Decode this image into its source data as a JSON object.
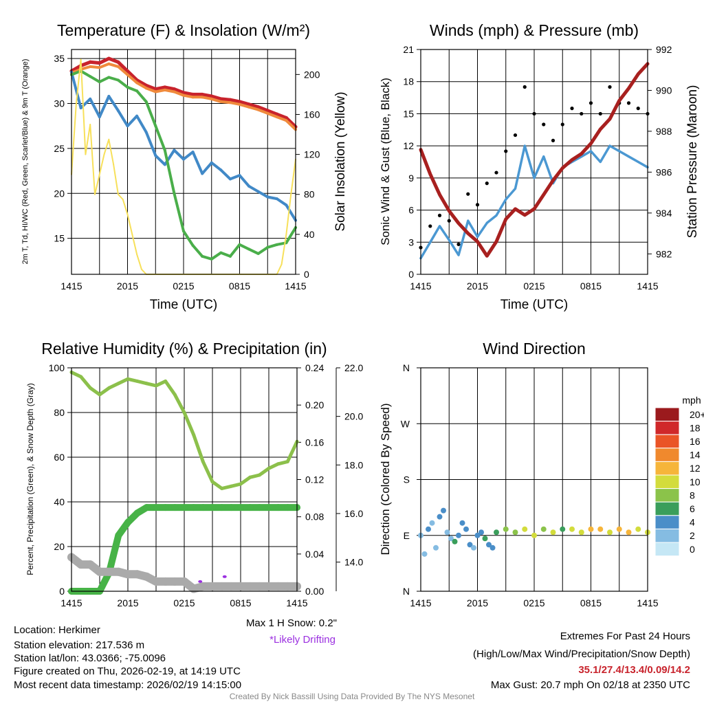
{
  "chart_data": [
    {
      "type": "line",
      "title": "Temperature (F) & Insolation (W/m²)",
      "xlabel": "Time (UTC)",
      "ylabel_left": "2m T, Td, HI/WC (Red, Green, Scarlet/Blue) & 9m T (Orange)",
      "ylabel_right": "Solar Insolation (Yellow)",
      "xticks": [
        "1415",
        "2015",
        "0215",
        "0815",
        "1415"
      ],
      "ylim": [
        11,
        36
      ],
      "yticks": [
        15,
        20,
        25,
        30,
        35
      ],
      "ylim_right": [
        0,
        225
      ],
      "yticks_right": [
        0,
        40,
        80,
        120,
        160,
        200
      ],
      "series": [
        {
          "name": "2m T (Red)",
          "color": "#c8232c",
          "x": [
            0,
            1,
            2,
            3,
            4,
            5,
            6,
            7,
            8,
            9,
            10,
            11,
            12,
            13,
            14,
            15,
            16,
            17,
            18,
            19,
            20,
            21,
            22,
            23,
            24
          ],
          "y": [
            33.6,
            34.2,
            34.6,
            34.5,
            35.0,
            34.6,
            33.6,
            32.6,
            32.0,
            31.6,
            31.8,
            31.6,
            31.2,
            31.0,
            31.0,
            30.8,
            30.5,
            30.4,
            30.2,
            29.9,
            29.6,
            29.2,
            28.8,
            28.4,
            27.4
          ]
        },
        {
          "name": "9m T (Orange)",
          "color": "#f08a3c",
          "x": [
            0,
            1,
            2,
            3,
            4,
            5,
            6,
            7,
            8,
            9,
            10,
            11,
            12,
            13,
            14,
            15,
            16,
            17,
            18,
            19,
            20,
            21,
            22,
            23,
            24
          ],
          "y": [
            33.4,
            33.8,
            34.1,
            34.0,
            34.4,
            34.1,
            33.2,
            32.3,
            31.7,
            31.3,
            31.5,
            31.3,
            30.9,
            30.7,
            30.7,
            30.5,
            30.2,
            30.1,
            29.9,
            29.6,
            29.3,
            28.9,
            28.5,
            28.1,
            27.1
          ]
        },
        {
          "name": "HI/WC (Blue)",
          "color": "#4189c7",
          "x": [
            0,
            1,
            2,
            3,
            4,
            5,
            6,
            7,
            8,
            9,
            10,
            11,
            12,
            13,
            14,
            15,
            16,
            17,
            18,
            19,
            20,
            21,
            22,
            23,
            24
          ],
          "y": [
            33.5,
            29.5,
            30.5,
            28.5,
            30.8,
            29.2,
            27.5,
            28.6,
            26.8,
            24.2,
            23.2,
            24.8,
            23.8,
            24.6,
            22.2,
            23.4,
            22.6,
            21.6,
            22.0,
            20.8,
            20.2,
            19.6,
            19.4,
            18.7,
            17.0
          ]
        },
        {
          "name": "Td (Green)",
          "color": "#4aae4a",
          "x": [
            0,
            1,
            2,
            3,
            4,
            5,
            6,
            7,
            8,
            9,
            10,
            11,
            12,
            13,
            14,
            15,
            16,
            17,
            18,
            19,
            20,
            21,
            22,
            23,
            24
          ],
          "y": [
            33.2,
            33.6,
            33.0,
            32.4,
            32.9,
            32.6,
            31.8,
            31.4,
            30.2,
            27.5,
            24.8,
            20.0,
            15.8,
            14.2,
            13.0,
            12.7,
            13.4,
            13.0,
            14.3,
            13.8,
            13.3,
            14.0,
            14.3,
            14.5,
            16.2
          ]
        },
        {
          "name": "Solar Insolation (Yellow)",
          "color": "#f7e05a",
          "axis": "right",
          "x": [
            0,
            0.5,
            1,
            1.5,
            2,
            2.5,
            3,
            3.5,
            4,
            4.5,
            5,
            5.5,
            6,
            6.5,
            7,
            7.5,
            8,
            9,
            12,
            20,
            21,
            22,
            22.5,
            23,
            23.5,
            24
          ],
          "y": [
            100,
            170,
            215,
            120,
            150,
            80,
            100,
            120,
            135,
            110,
            80,
            75,
            60,
            40,
            20,
            5,
            0,
            0,
            0,
            0,
            0,
            0,
            10,
            40,
            80,
            115
          ]
        }
      ]
    },
    {
      "type": "line",
      "title": "Winds (mph) & Pressure (mb)",
      "xlabel": "Time (UTC)",
      "ylabel_left": "Sonic Wind & Gust (Blue, Black)",
      "ylabel_right": "Station Pressure (Maroon)",
      "xticks": [
        "1415",
        "2015",
        "0215",
        "0815",
        "1415"
      ],
      "ylim": [
        0,
        21
      ],
      "yticks": [
        0,
        3,
        6,
        9,
        12,
        15,
        18,
        21
      ],
      "ylim_right": [
        981,
        992
      ],
      "yticks_right": [
        982,
        984,
        986,
        988,
        990,
        992
      ],
      "series": [
        {
          "name": "Sonic Wind (Blue)",
          "color": "#4b98d2",
          "x": [
            0,
            1,
            2,
            3,
            4,
            5,
            6,
            7,
            8,
            9,
            10,
            11,
            12,
            13,
            14,
            15,
            16,
            17,
            18,
            19,
            20,
            21,
            22,
            23,
            24
          ],
          "y": [
            1.5,
            3.0,
            4.5,
            3.2,
            1.8,
            5.0,
            3.5,
            4.8,
            5.5,
            7.0,
            8.0,
            12.0,
            9.0,
            11.0,
            8.5,
            10.0,
            10.5,
            11.0,
            11.5,
            10.5,
            12.0,
            11.5,
            11.0,
            10.5,
            10.0
          ]
        },
        {
          "name": "Gust (Black)",
          "color": "#000000",
          "type": "scatter",
          "x": [
            0,
            1,
            2,
            3,
            4,
            5,
            6,
            7,
            8,
            9,
            10,
            11,
            12,
            13,
            14,
            15,
            16,
            17,
            18,
            19,
            20,
            21,
            22,
            23,
            24
          ],
          "y": [
            2.5,
            4.5,
            5.5,
            5.0,
            2.8,
            7.5,
            6.5,
            8.5,
            9.5,
            11.5,
            13.0,
            17.5,
            15.0,
            14.0,
            12.5,
            14.0,
            15.5,
            15.0,
            16.0,
            15.0,
            17.5,
            16.0,
            16.0,
            15.5,
            15.0
          ]
        },
        {
          "name": "Station Pressure (Maroon)",
          "color": "#a8201f",
          "axis": "right",
          "x": [
            0,
            1,
            2,
            3,
            4,
            5,
            6,
            7,
            8,
            9,
            10,
            11,
            12,
            13,
            14,
            15,
            16,
            17,
            18,
            19,
            20,
            21,
            22,
            23,
            24
          ],
          "y": [
            987.1,
            985.9,
            984.9,
            984.1,
            983.5,
            983.0,
            982.6,
            981.9,
            982.6,
            983.7,
            984.2,
            983.9,
            984.2,
            984.9,
            985.6,
            986.2,
            986.6,
            986.9,
            987.4,
            988.1,
            988.6,
            989.5,
            990.1,
            990.8,
            991.3
          ]
        }
      ]
    },
    {
      "type": "line",
      "title": "Relative Humidity (%) & Precipitation (in)",
      "ylabel_left": "Percent, Precipitation (Green), & Snow Depth (Gray)",
      "xticks": [
        "1415",
        "2015",
        "0215",
        "0815",
        "1415"
      ],
      "ylim": [
        0,
        100
      ],
      "yticks": [
        0,
        20,
        40,
        60,
        80,
        100
      ],
      "ylim_right": [
        0,
        0.24
      ],
      "yticks_right": [
        0.0,
        0.04,
        0.08,
        0.12,
        0.16,
        0.2,
        0.24
      ],
      "ylim_snow": [
        12.8,
        22.0
      ],
      "yticks_snow": [
        14.0,
        16.0,
        18.0,
        20.0,
        22.0
      ],
      "series": [
        {
          "name": "Relative Humidity (Light Green)",
          "color": "#8cc04b",
          "x": [
            0,
            1,
            2,
            3,
            4,
            5,
            6,
            7,
            8,
            9,
            10,
            11,
            12,
            13,
            14,
            15,
            16,
            17,
            18,
            19,
            20,
            21,
            22,
            23,
            24
          ],
          "y": [
            98,
            96,
            91,
            88,
            91,
            93,
            95,
            94,
            93,
            92,
            94,
            88,
            80,
            70,
            58,
            49,
            46,
            47,
            48,
            51,
            52,
            55,
            57,
            58,
            67
          ]
        },
        {
          "name": "Precipitation (Green)",
          "color": "#47b347",
          "axis": "right",
          "x": [
            0,
            1,
            2,
            3,
            4,
            5,
            6,
            7,
            8,
            9,
            10,
            11,
            12,
            13,
            14,
            15,
            16,
            17,
            18,
            19,
            20,
            21,
            22,
            23,
            24
          ],
          "y": [
            0.0,
            0.0,
            0.0,
            0.0,
            0.02,
            0.06,
            0.074,
            0.084,
            0.09,
            0.09,
            0.09,
            0.09,
            0.09,
            0.09,
            0.09,
            0.09,
            0.09,
            0.09,
            0.09,
            0.09,
            0.09,
            0.09,
            0.09,
            0.09,
            0.09
          ]
        },
        {
          "name": "Snow Depth (Gray)",
          "color": "#aaaaaa",
          "axis": "snow",
          "x": [
            0,
            1,
            2,
            3,
            4,
            5,
            6,
            7,
            8,
            9,
            10,
            11,
            12,
            13,
            14,
            15,
            16,
            17,
            18,
            19,
            20,
            21,
            22,
            23,
            24
          ],
          "y": [
            14.2,
            13.9,
            13.9,
            13.6,
            13.6,
            13.6,
            13.5,
            13.5,
            13.4,
            13.2,
            13.2,
            13.2,
            13.2,
            12.9,
            13.0,
            13.0,
            13.0,
            13.0,
            13.0,
            13.0,
            13.0,
            13.0,
            13.0,
            13.0,
            13.0
          ]
        },
        {
          "name": "Likely Drifting (Purple)",
          "color": "#9b30e0",
          "type": "scatter",
          "axis": "snow",
          "x": [
            13.7,
            16.3
          ],
          "y": [
            13.2,
            13.4
          ]
        }
      ],
      "annotations": [
        "Max 1 H Snow: 0.2\"",
        "*Likely Drifting"
      ]
    },
    {
      "type": "scatter",
      "title": "Wind Direction",
      "ylabel_left": "Direction (Colored By Speed)",
      "xticks": [
        "1415",
        "2015",
        "0215",
        "0815",
        "1415"
      ],
      "yticks": [
        "N",
        "E",
        "S",
        "W",
        "N"
      ],
      "ylim": [
        0,
        360
      ],
      "legend_title": "mph",
      "legend_labels": [
        "0",
        "2",
        "4",
        "6",
        "8",
        "10",
        "12",
        "14",
        "16",
        "18",
        "20+"
      ],
      "legend_colors": [
        "#c5e7f5",
        "#85bce2",
        "#4a8ec8",
        "#3a9e5b",
        "#8bc34a",
        "#d3dc3c",
        "#f6b53a",
        "#f0892d",
        "#ea5426",
        "#d0282a",
        "#9b1a1d"
      ],
      "points": {
        "x": [
          0,
          0.4,
          0.8,
          1.2,
          1.6,
          2.0,
          2.4,
          2.8,
          3.2,
          3.6,
          4.0,
          4.4,
          4.8,
          5.2,
          5.6,
          6.0,
          6.4,
          6.8,
          7.2,
          7.6,
          8.0,
          9,
          10,
          11,
          12,
          13,
          14,
          15,
          16,
          17,
          18,
          19,
          20,
          21,
          22,
          23,
          24
        ],
        "y": [
          90,
          60,
          100,
          110,
          70,
          120,
          130,
          95,
          85,
          80,
          90,
          110,
          100,
          75,
          70,
          90,
          95,
          85,
          75,
          70,
          95,
          100,
          95,
          100,
          90,
          100,
          95,
          100,
          100,
          95,
          100,
          100,
          95,
          100,
          95,
          100,
          95
        ],
        "speed": [
          1,
          2,
          3,
          2,
          1,
          4,
          3,
          2,
          2,
          5,
          4,
          3,
          4,
          3,
          2,
          4,
          3,
          5,
          4,
          3,
          6,
          7,
          8,
          9,
          10,
          8,
          9,
          6,
          10,
          9,
          11,
          12,
          10,
          11,
          12,
          10,
          9
        ]
      }
    }
  ],
  "footer": {
    "location": "Location: Herkimer",
    "elevation": "Station elevation: 217.536 m",
    "latlon": "Station lat/lon: 43.0366; -75.0096",
    "created": "Figure created on Thu, 2026-02-19, at 14:19 UTC",
    "recent": "Most recent data timestamp: 2026/02/19 14:15:00",
    "max_snow": "Max 1 H Snow: 0.2\"",
    "drifting": "*Likely Drifting",
    "extremes_title": "Extremes For Past 24 Hours",
    "extremes_sub": "(High/Low/Max Wind/Precipitation/Snow Depth)",
    "extremes_values": "35.1/27.4/13.4/0.09/14.2",
    "max_gust": "Max Gust: 20.7 mph On 02/18 at 2350 UTC",
    "credit": "Created By Nick Bassill Using Data Provided By The NYS Mesonet"
  }
}
